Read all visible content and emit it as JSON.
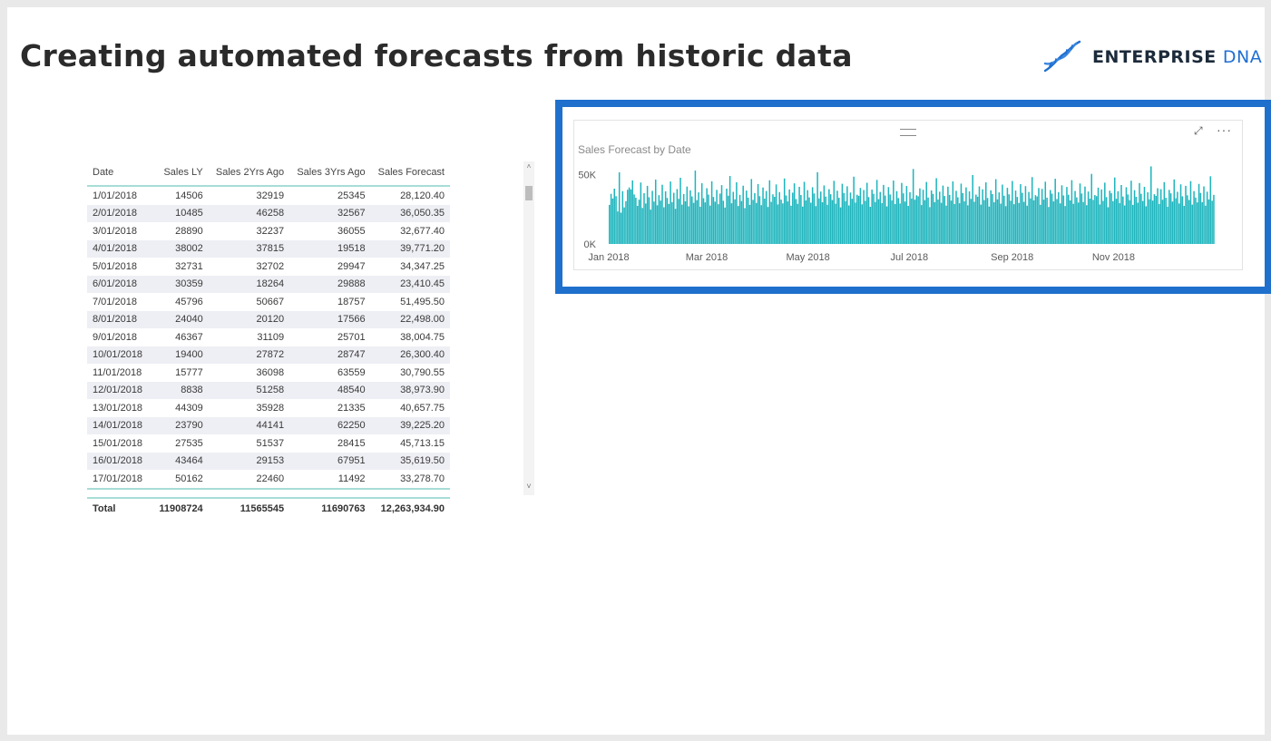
{
  "page": {
    "title": "Creating automated forecasts from historic data"
  },
  "logo": {
    "icon": "dna-helix-icon",
    "word1": "ENTERPRISE",
    "word2": "DNA",
    "color_primary": "#1f6fd1"
  },
  "table": {
    "columns": [
      "Date",
      "Sales LY",
      "Sales 2Yrs Ago",
      "Sales 3Yrs Ago",
      "Sales Forecast"
    ],
    "rows": [
      [
        "1/01/2018",
        "14506",
        "32919",
        "25345",
        "28,120.40"
      ],
      [
        "2/01/2018",
        "10485",
        "46258",
        "32567",
        "36,050.35"
      ],
      [
        "3/01/2018",
        "28890",
        "32237",
        "36055",
        "32,677.40"
      ],
      [
        "4/01/2018",
        "38002",
        "37815",
        "19518",
        "39,771.20"
      ],
      [
        "5/01/2018",
        "32731",
        "32702",
        "29947",
        "34,347.25"
      ],
      [
        "6/01/2018",
        "30359",
        "18264",
        "29888",
        "23,410.45"
      ],
      [
        "7/01/2018",
        "45796",
        "50667",
        "18757",
        "51,495.50"
      ],
      [
        "8/01/2018",
        "24040",
        "20120",
        "17566",
        "22,498.00"
      ],
      [
        "9/01/2018",
        "46367",
        "31109",
        "25701",
        "38,004.75"
      ],
      [
        "10/01/2018",
        "19400",
        "27872",
        "28747",
        "26,300.40"
      ],
      [
        "11/01/2018",
        "15777",
        "36098",
        "63559",
        "30,790.55"
      ],
      [
        "12/01/2018",
        "8838",
        "51258",
        "48540",
        "38,973.90"
      ],
      [
        "13/01/2018",
        "44309",
        "35928",
        "21335",
        "40,657.75"
      ],
      [
        "14/01/2018",
        "23790",
        "44141",
        "62250",
        "39,225.20"
      ],
      [
        "15/01/2018",
        "27535",
        "51537",
        "28415",
        "45,713.15"
      ],
      [
        "16/01/2018",
        "43464",
        "29153",
        "67951",
        "35,619.50"
      ],
      [
        "17/01/2018",
        "50162",
        "22460",
        "11492",
        "33,278.70"
      ]
    ],
    "total": [
      "Total",
      "11908724",
      "11565545",
      "11690763",
      "12,263,934.90"
    ],
    "scroll_up": "˄",
    "scroll_down": "˅"
  },
  "visual": {
    "focus_icon": "focus-mode-icon",
    "more_icon": "more-options-icon",
    "more_glyph": "···",
    "focus_glyph": "⤢"
  },
  "chart_data": {
    "type": "bar",
    "title": "Sales Forecast by Date",
    "color": "#1fb5bd",
    "y_ticks": [
      "50K",
      "0K"
    ],
    "y_tick_values": [
      50000,
      0
    ],
    "ylim": [
      0,
      60000
    ],
    "x_ticks": [
      "Jan 2018",
      "Mar 2018",
      "May 2018",
      "Jul 2018",
      "Sep 2018",
      "Nov 2018"
    ],
    "x_start": "2018-01-01",
    "x_end": "2018-12-31",
    "values": [
      28120.4,
      36050.35,
      32677.4,
      39771.2,
      34347.25,
      23410.45,
      51495.5,
      22498,
      38004.75,
      26300.4,
      30790.55,
      38973.9,
      40657.75,
      39225.2,
      45713.15,
      35619.5,
      33278.7,
      27400,
      31800,
      44200,
      25900,
      36500,
      29100,
      41800,
      33600,
      24700,
      38200,
      30500,
      46300,
      27800,
      35100,
      31200,
      42600,
      26400,
      37900,
      33100,
      28800,
      44900,
      30100,
      36800,
      25300,
      39500,
      32400,
      47600,
      28300,
      35900,
      30700,
      41300,
      27100,
      38600,
      34200,
      29600,
      52800,
      31500,
      37100,
      26800,
      43700,
      32900,
      29900,
      40100,
      35500,
      27600,
      45100,
      33800,
      30400,
      38900,
      28600,
      36200,
      42300,
      31100,
      26200,
      39800,
      34700,
      48900,
      29300,
      37500,
      32100,
      44400,
      27300,
      35300,
      30900,
      41900,
      25800,
      38400,
      33300,
      28100,
      46700,
      31700,
      36600,
      29500,
      43100,
      34400,
      27900,
      40600,
      32600,
      38100,
      26600,
      45800,
      30300,
      35700,
      33900,
      42800,
      28400,
      37300,
      31900,
      29200,
      47100,
      34900,
      30600,
      39200,
      27500,
      36900,
      43600,
      32300,
      28900,
      41100,
      35200,
      26900,
      44700,
      31300,
      38700,
      33500,
      29700,
      40800,
      36300,
      27200,
      51600,
      32800,
      37700,
      30000,
      42100,
      34100,
      28200,
      39400,
      35800,
      31600,
      45400,
      29000,
      38300,
      33200,
      26300,
      43300,
      36700,
      30800,
      41500,
      27700,
      37000,
      32500,
      48400,
      29800,
      35400,
      34600,
      40300,
      28500,
      38800,
      31000,
      44000,
      33700,
      26700,
      39100,
      36100,
      30200,
      46100,
      32200,
      37400,
      29400,
      42500,
      34800,
      27000,
      40900,
      35600,
      31400,
      45600,
      28700,
      38000,
      33000,
      29100,
      43900,
      36400,
      30500,
      41700,
      27400,
      37200,
      32700,
      53900,
      31800,
      35000,
      34300,
      40000,
      28000,
      39000,
      31500,
      44600,
      33400,
      26500,
      38500,
      36000,
      30100,
      47300,
      32000,
      37600,
      29600,
      42000,
      34500,
      27600,
      41200,
      35300,
      31200,
      45000,
      28800,
      38200,
      33600,
      29300,
      43400,
      36600,
      30700,
      40700,
      27800,
      37800,
      32400,
      49600,
      30400,
      35500,
      34000,
      41400,
      28300,
      39300,
      31600,
      44300,
      33100,
      26900,
      38600,
      35900,
      30000,
      46600,
      32100,
      37100,
      29000,
      42700,
      34700,
      27200,
      40400,
      35700,
      31100,
      45300,
      28600,
      38400,
      33800,
      29500,
      43000,
      36800,
      30300,
      41600,
      27500,
      37400,
      32800,
      48100,
      31400,
      35100,
      34200,
      40200,
      28200,
      39600,
      31900,
      44800,
      33300,
      26600,
      38800,
      36200,
      30600,
      46900,
      32300,
      37300,
      29200,
      42200,
      34900,
      27300,
      41000,
      35400,
      31300,
      45900,
      28900,
      38100,
      33500,
      29800,
      43500,
      36300,
      30200,
      41300,
      27900,
      37700,
      32600,
      50400,
      31700,
      35200,
      34400,
      40500,
      28400,
      39200,
      31000,
      44100,
      33700,
      26400,
      38300,
      36500,
      30800,
      47800,
      32500,
      37900,
      29400,
      42400,
      34100,
      27700,
      40800,
      35600,
      31500,
      45500,
      28100,
      38700,
      33900,
      29700,
      43800,
      36100,
      30900,
      41100,
      27100,
      37200,
      32200,
      55800,
      31200,
      35800,
      34600,
      40100,
      28700,
      39400,
      31800,
      44500,
      33200,
      26800,
      38900,
      36400,
      30500,
      46400,
      32900,
      37500,
      29100,
      42900,
      34300,
      27400,
      41800,
      35000,
      31600,
      45200,
      28300,
      38000,
      33400,
      29900,
      43200,
      36700,
      30100,
      41400,
      27600,
      37600,
      32000,
      48700,
      31100,
      35300
    ]
  }
}
